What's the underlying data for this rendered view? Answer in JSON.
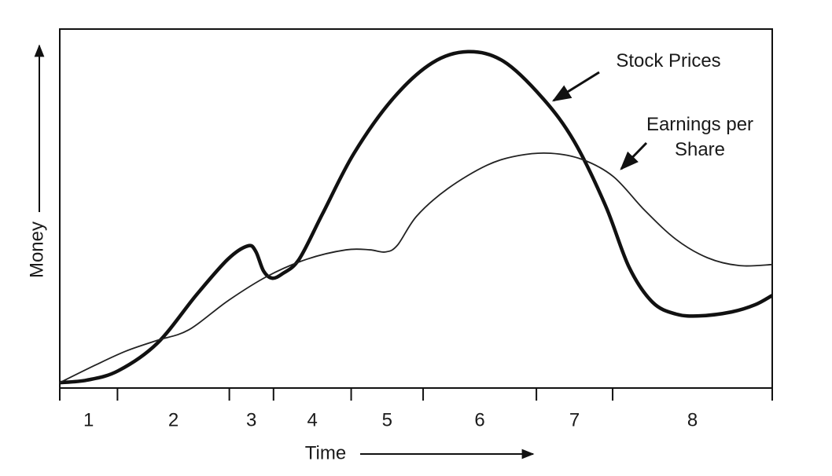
{
  "chart_data": {
    "type": "line",
    "xlabel": "Time",
    "ylabel": "Money",
    "categories": [
      "1",
      "2",
      "3",
      "4",
      "5",
      "6",
      "7",
      "8"
    ],
    "bins": [
      0,
      8.1,
      23.8,
      30.0,
      40.9,
      51.0,
      66.9,
      77.6,
      100
    ],
    "xlim": [
      0,
      100
    ],
    "ylim": [
      0,
      100
    ],
    "series": [
      {
        "name": "Stock Prices",
        "color": "#111111",
        "x": [
          0,
          3.8,
          8.2,
          13.7,
          19.2,
          23.6,
          26.4,
          27.5,
          28.6,
          29.8,
          31.3,
          33.6,
          36.9,
          41.3,
          46.8,
          52.3,
          57.3,
          62.3,
          67.8,
          72.2,
          76.6,
          79.9,
          83.2,
          86.5,
          89.8,
          94.3,
          97.6,
          100
        ],
        "values": [
          1.5,
          2.2,
          4.8,
          12.5,
          26.0,
          35.9,
          39.6,
          38.1,
          32.6,
          30.6,
          31.9,
          35.9,
          48.6,
          65.4,
          80.7,
          90.6,
          93.7,
          91.0,
          80.7,
          68.7,
          50.8,
          33.7,
          23.9,
          20.6,
          20.1,
          21.2,
          23.2,
          25.8
        ]
      },
      {
        "name": "Earnings per Share",
        "color": "#222222",
        "x": [
          0,
          4.9,
          9.3,
          13.7,
          18.1,
          23.6,
          29.1,
          34.7,
          40.2,
          43.5,
          45.7,
          47.4,
          50.1,
          54.5,
          60.0,
          64.5,
          68.9,
          73.3,
          77.7,
          82.1,
          86.5,
          90.9,
          95.4,
          100
        ],
        "values": [
          1.5,
          6.3,
          10.3,
          13.3,
          16.2,
          24.3,
          31.1,
          35.9,
          38.5,
          38.5,
          37.9,
          39.8,
          47.9,
          55.6,
          62.1,
          64.8,
          65.4,
          63.7,
          58.9,
          49.5,
          41.4,
          36.3,
          34.1,
          34.4
        ]
      }
    ]
  }
}
